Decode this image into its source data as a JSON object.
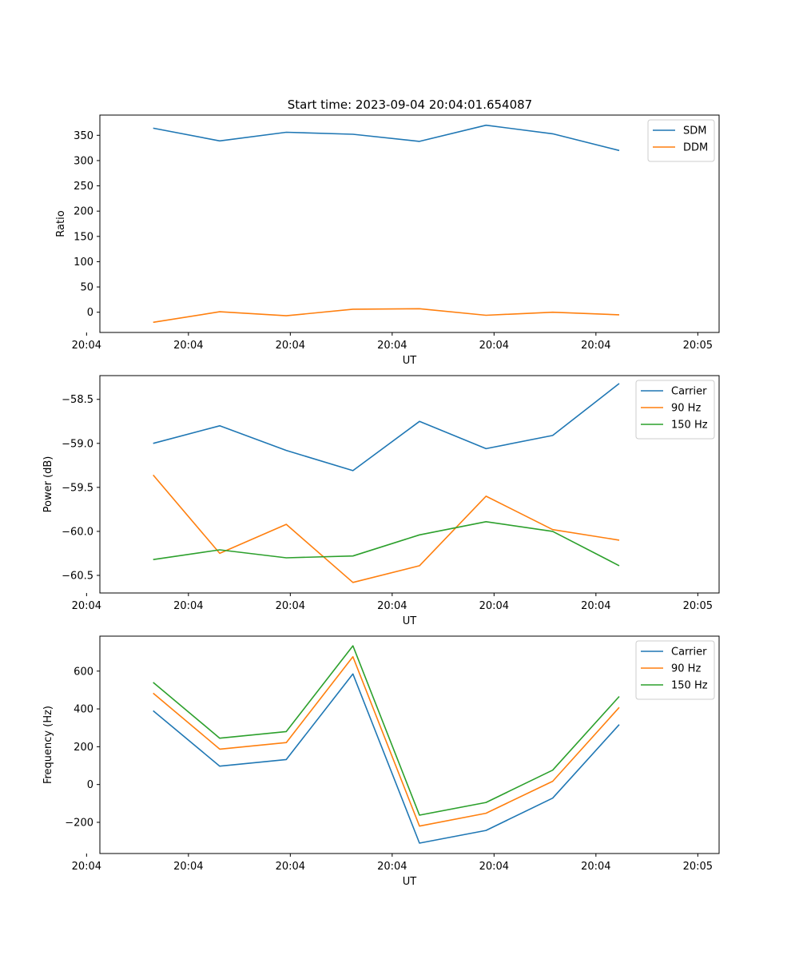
{
  "figure": {
    "title": "Start time: 2023-09-04 20:04:01.654087"
  },
  "chart_data": [
    {
      "type": "line",
      "xlabel": "UT",
      "ylabel": "Ratio",
      "x": [
        1,
        2,
        3,
        4,
        5,
        6,
        7,
        8
      ],
      "xlim": [
        0.2,
        9.5
      ],
      "x_ticks": [
        0.0,
        1.53,
        3.06,
        4.59,
        6.12,
        7.65,
        9.18
      ],
      "x_tick_labels": [
        "20:04",
        "20:04",
        "20:04",
        "20:04",
        "20:04",
        "20:04",
        "20:05"
      ],
      "ylim": [
        -40,
        390
      ],
      "y_ticks": [
        0,
        50,
        100,
        150,
        200,
        250,
        300,
        350
      ],
      "y_tick_labels": [
        "0",
        "50",
        "100",
        "150",
        "200",
        "250",
        "300",
        "350"
      ],
      "legend_position": "top-right",
      "series": [
        {
          "name": "SDM",
          "color": "#1f77b4",
          "values": [
            364,
            339,
            356,
            352,
            338,
            370,
            353,
            320
          ]
        },
        {
          "name": "DDM",
          "color": "#ff7f0e",
          "values": [
            -20,
            1,
            -7,
            6,
            7,
            -6,
            0,
            -5
          ]
        }
      ]
    },
    {
      "type": "line",
      "xlabel": "UT",
      "ylabel": "Power (dB)",
      "x": [
        1,
        2,
        3,
        4,
        5,
        6,
        7,
        8
      ],
      "xlim": [
        0.2,
        9.5
      ],
      "x_ticks": [
        0.0,
        1.53,
        3.06,
        4.59,
        6.12,
        7.65,
        9.18
      ],
      "x_tick_labels": [
        "20:04",
        "20:04",
        "20:04",
        "20:04",
        "20:04",
        "20:04",
        "20:05"
      ],
      "ylim": [
        -60.7,
        -58.23
      ],
      "y_ticks": [
        -60.5,
        -60.0,
        -59.5,
        -59.0,
        -58.5
      ],
      "y_tick_labels": [
        "−60.5",
        "−60.0",
        "−59.5",
        "−59.0",
        "−58.5"
      ],
      "legend_position": "top-right",
      "series": [
        {
          "name": "Carrier",
          "color": "#1f77b4",
          "values": [
            -59.0,
            -58.8,
            -59.08,
            -59.31,
            -58.75,
            -59.06,
            -58.91,
            -58.32
          ]
        },
        {
          "name": "90 Hz",
          "color": "#ff7f0e",
          "values": [
            -59.36,
            -60.25,
            -59.92,
            -60.58,
            -60.39,
            -59.6,
            -59.98,
            -60.1
          ]
        },
        {
          "name": "150 Hz",
          "color": "#2ca02c",
          "values": [
            -60.32,
            -60.21,
            -60.3,
            -60.28,
            -60.04,
            -59.89,
            -60.0,
            -60.39
          ]
        }
      ]
    },
    {
      "type": "line",
      "xlabel": "UT",
      "ylabel": "Frequency (Hz)",
      "x": [
        1,
        2,
        3,
        4,
        5,
        6,
        7,
        8
      ],
      "xlim": [
        0.2,
        9.5
      ],
      "x_ticks": [
        0.0,
        1.53,
        3.06,
        4.59,
        6.12,
        7.65,
        9.18
      ],
      "x_tick_labels": [
        "20:04",
        "20:04",
        "20:04",
        "20:04",
        "20:04",
        "20:04",
        "20:05"
      ],
      "ylim": [
        -365,
        785
      ],
      "y_ticks": [
        -200,
        0,
        200,
        400,
        600
      ],
      "y_tick_labels": [
        "−200",
        "0",
        "200",
        "400",
        "600"
      ],
      "legend_position": "top-right",
      "series": [
        {
          "name": "Carrier",
          "color": "#1f77b4",
          "values": [
            390,
            97,
            132,
            585,
            -310,
            -243,
            -72,
            317
          ]
        },
        {
          "name": "90 Hz",
          "color": "#ff7f0e",
          "values": [
            483,
            187,
            222,
            676,
            -220,
            -152,
            17,
            408
          ]
        },
        {
          "name": "150 Hz",
          "color": "#2ca02c",
          "values": [
            540,
            245,
            280,
            734,
            -162,
            -95,
            76,
            466
          ]
        }
      ]
    }
  ]
}
